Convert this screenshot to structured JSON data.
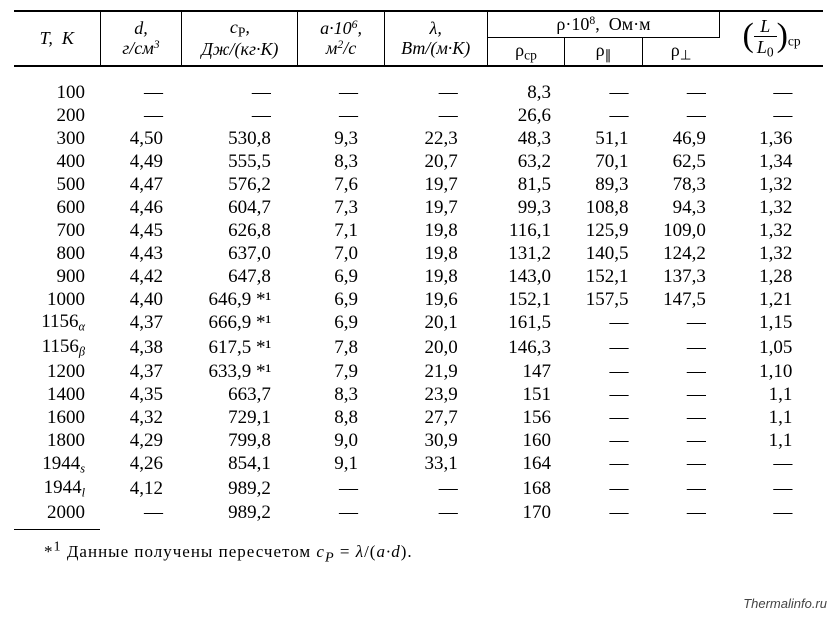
{
  "table": {
    "type": "table",
    "background_color": "#ffffff",
    "text_color": "#000000",
    "rule_color": "#000000",
    "font_family": "Times New Roman",
    "body_fontsize_pt": 14,
    "header_fontsize_pt": 13,
    "columns": {
      "T": {
        "label_html": "<i>T</i>, K"
      },
      "d": {
        "label_html": "<i>d</i>,<br>г/см<sup>3</sup>"
      },
      "cp": {
        "label_html": "<i>c<sub>P</sub></i>,<br>Дж/(кг·К)"
      },
      "a": {
        "label_html": "<i>a</i>·10<sup>6</sup>,<br>м<sup>2</sup>/с"
      },
      "l": {
        "label_html": "<i>λ</i>,<br>Вт/(м·К)"
      },
      "rho_group": {
        "label_html": "ρ·10<sup>8</sup>, Ом·м"
      },
      "r1": {
        "label_html": "ρ<sub>ср</sub>"
      },
      "r2": {
        "label_html": "ρ<sub>∥</sub>"
      },
      "r3": {
        "label_html": "ρ<sub>⊥</sub>"
      },
      "L": {
        "label_html": "(<span class='frac'><span class='num'>L</span><span class='den'>L<sub>0</sub></span></span>)<sub>ср</sub>"
      }
    },
    "rows": [
      {
        "T": "100",
        "d": "—",
        "cp": "—",
        "a": "—",
        "l": "—",
        "r1": "8,3",
        "r2": "—",
        "r3": "—",
        "L": "—"
      },
      {
        "T": "200",
        "d": "—",
        "cp": "—",
        "a": "—",
        "l": "—",
        "r1": "26,6",
        "r2": "—",
        "r3": "—",
        "L": "—"
      },
      {
        "T": "300",
        "d": "4,50",
        "cp": "530,8",
        "a": "9,3",
        "l": "22,3",
        "r1": "48,3",
        "r2": "51,1",
        "r3": "46,9",
        "L": "1,36"
      },
      {
        "T": "400",
        "d": "4,49",
        "cp": "555,5",
        "a": "8,3",
        "l": "20,7",
        "r1": "63,2",
        "r2": "70,1",
        "r3": "62,5",
        "L": "1,34"
      },
      {
        "T": "500",
        "d": "4,47",
        "cp": "576,2",
        "a": "7,6",
        "l": "19,7",
        "r1": "81,5",
        "r2": "89,3",
        "r3": "78,3",
        "L": "1,32"
      },
      {
        "T": "600",
        "d": "4,46",
        "cp": "604,7",
        "a": "7,3",
        "l": "19,7",
        "r1": "99,3",
        "r2": "108,8",
        "r3": "94,3",
        "L": "1,32"
      },
      {
        "T": "700",
        "d": "4,45",
        "cp": "626,8",
        "a": "7,1",
        "l": "19,8",
        "r1": "116,1",
        "r2": "125,9",
        "r3": "109,0",
        "L": "1,32"
      },
      {
        "T": "800",
        "d": "4,43",
        "cp": "637,0",
        "a": "7,0",
        "l": "19,8",
        "r1": "131,2",
        "r2": "140,5",
        "r3": "124,2",
        "L": "1,32"
      },
      {
        "T": "900",
        "d": "4,42",
        "cp": "647,8",
        "a": "6,9",
        "l": "19,8",
        "r1": "143,0",
        "r2": "152,1",
        "r3": "137,3",
        "L": "1,28"
      },
      {
        "T": "1000",
        "d": "4,40",
        "cp": "646,9 *¹",
        "a": "6,9",
        "l": "19,6",
        "r1": "152,1",
        "r2": "157,5",
        "r3": "147,5",
        "L": "1,21"
      },
      {
        "T": "1156<sub class='sub'>α</sub>",
        "d": "4,37",
        "cp": "666,9 *¹",
        "a": "6,9",
        "l": "20,1",
        "r1": "161,5",
        "r2": "—",
        "r3": "—",
        "L": "1,15"
      },
      {
        "T": "1156<sub class='sub'>β</sub>",
        "d": "4,38",
        "cp": "617,5 *¹",
        "a": "7,8",
        "l": "20,0",
        "r1": "146,3",
        "r2": "—",
        "r3": "—",
        "L": "1,05"
      },
      {
        "T": "1200",
        "d": "4,37",
        "cp": "633,9 *¹",
        "a": "7,9",
        "l": "21,9",
        "r1": "147",
        "r2": "—",
        "r3": "—",
        "L": "1,10"
      },
      {
        "T": "1400",
        "d": "4,35",
        "cp": "663,7",
        "a": "8,3",
        "l": "23,9",
        "r1": "151",
        "r2": "—",
        "r3": "—",
        "L": "1,1"
      },
      {
        "T": "1600",
        "d": "4,32",
        "cp": "729,1",
        "a": "8,8",
        "l": "27,7",
        "r1": "156",
        "r2": "—",
        "r3": "—",
        "L": "1,1"
      },
      {
        "T": "1800",
        "d": "4,29",
        "cp": "799,8",
        "a": "9,0",
        "l": "30,9",
        "r1": "160",
        "r2": "—",
        "r3": "—",
        "L": "1,1"
      },
      {
        "T": "1944<sub class='sub'>s</sub>",
        "d": "4,26",
        "cp": "854,1",
        "a": "9,1",
        "l": "33,1",
        "r1": "164",
        "r2": "—",
        "r3": "—",
        "L": "—"
      },
      {
        "T": "1944<sub class='sub'>l</sub>",
        "d": "4,12",
        "cp": "989,2",
        "a": "—",
        "l": "—",
        "r1": "168",
        "r2": "—",
        "r3": "—",
        "L": "—"
      },
      {
        "T": "2000",
        "d": "—",
        "cp": "989,2",
        "a": "—",
        "l": "—",
        "r1": "170",
        "r2": "—",
        "r3": "—",
        "L": "—"
      }
    ],
    "footnote_html": "*<sup>1</sup> Данные получены пересчетом <i>c<sub>P</sub></i> = <i>λ</i>/(<i>a·d</i>).",
    "watermark": "Thermalinfo.ru"
  }
}
